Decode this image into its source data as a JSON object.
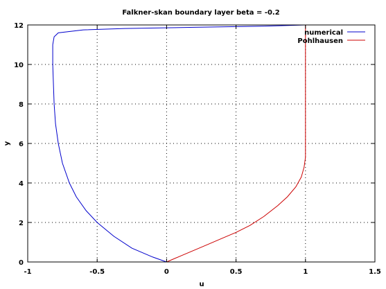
{
  "chart_data": {
    "type": "line",
    "title": "Falkner-skan boundary layer beta = -0.2",
    "xlabel": "u",
    "ylabel": "y",
    "xlim": [
      -1,
      1.5
    ],
    "ylim": [
      0,
      12
    ],
    "xticks": [
      "-1",
      "-0.5",
      "0",
      "0.5",
      "1",
      "1.5"
    ],
    "yticks": [
      "0",
      "2",
      "4",
      "6",
      "8",
      "10",
      "12"
    ],
    "grid": true,
    "legend_position": "top-right",
    "series": [
      {
        "name": "numerical",
        "color": "#0000cc",
        "x": [
          0,
          -0.1,
          -0.25,
          -0.38,
          -0.5,
          -0.58,
          -0.65,
          -0.7,
          -0.75,
          -0.78,
          -0.8,
          -0.81,
          -0.815,
          -0.82,
          -0.82,
          -0.81,
          -0.78,
          -0.6,
          -0.3,
          0.2,
          0.7,
          1.0
        ],
        "y": [
          0,
          0.25,
          0.7,
          1.3,
          2.0,
          2.6,
          3.3,
          4.0,
          5.0,
          6.0,
          7.0,
          8.0,
          9.0,
          10.0,
          11.0,
          11.4,
          11.6,
          11.75,
          11.82,
          11.88,
          11.94,
          12.0
        ]
      },
      {
        "name": "Pohlhausen",
        "color": "#cc0000",
        "x": [
          0,
          0.1,
          0.2,
          0.3,
          0.4,
          0.5,
          0.6,
          0.7,
          0.8,
          0.87,
          0.93,
          0.97,
          0.99,
          1.0,
          1.0,
          1.0
        ],
        "y": [
          0,
          0.3,
          0.6,
          0.9,
          1.2,
          1.5,
          1.85,
          2.3,
          2.85,
          3.3,
          3.8,
          4.3,
          4.8,
          5.3,
          8,
          12
        ]
      }
    ]
  }
}
